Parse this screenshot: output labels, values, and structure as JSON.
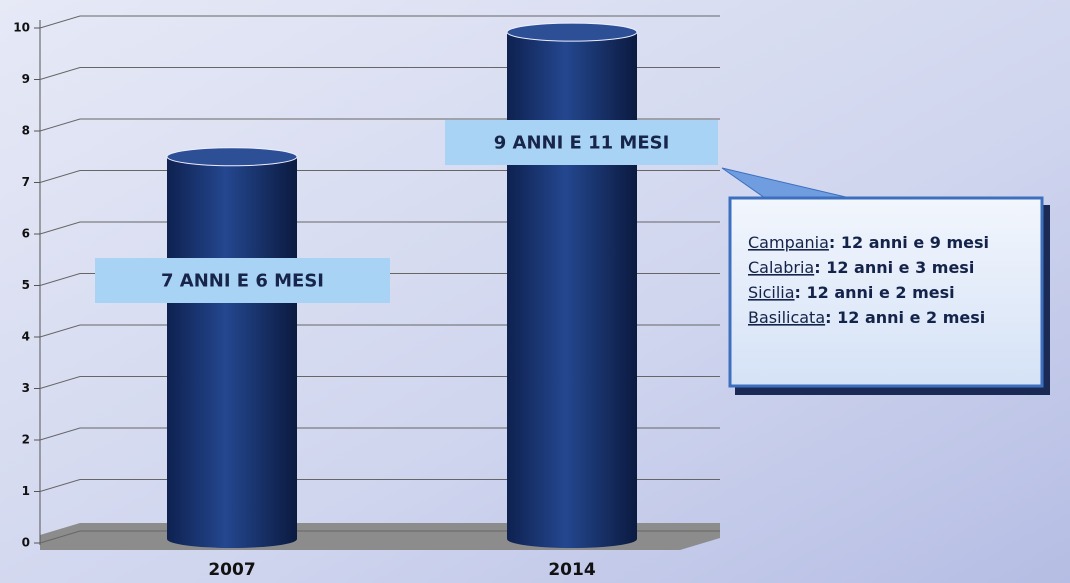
{
  "chart_data": {
    "type": "bar",
    "categories": [
      "2007",
      "2014"
    ],
    "values": [
      7.5,
      9.92
    ],
    "value_labels": [
      "7 ANNI E 6 MESI",
      "9 ANNI E 11 MESI"
    ],
    "color": "#1c3a78",
    "ylim": [
      0,
      10
    ],
    "yticks": [
      0,
      1,
      2,
      3,
      4,
      5,
      6,
      7,
      8,
      9,
      10
    ],
    "grid": true,
    "annotation": {
      "items": [
        {
          "region": "Campania",
          "detail": ": 12 anni e 9 mesi"
        },
        {
          "region": "Calabria",
          "detail": ": 12 anni e 3 mesi"
        },
        {
          "region": "Sicilia",
          "detail": ": 12 anni e 2 mesi"
        },
        {
          "region": "Basilicata",
          "detail": ": 12 anni e 2 mesi"
        }
      ]
    }
  }
}
